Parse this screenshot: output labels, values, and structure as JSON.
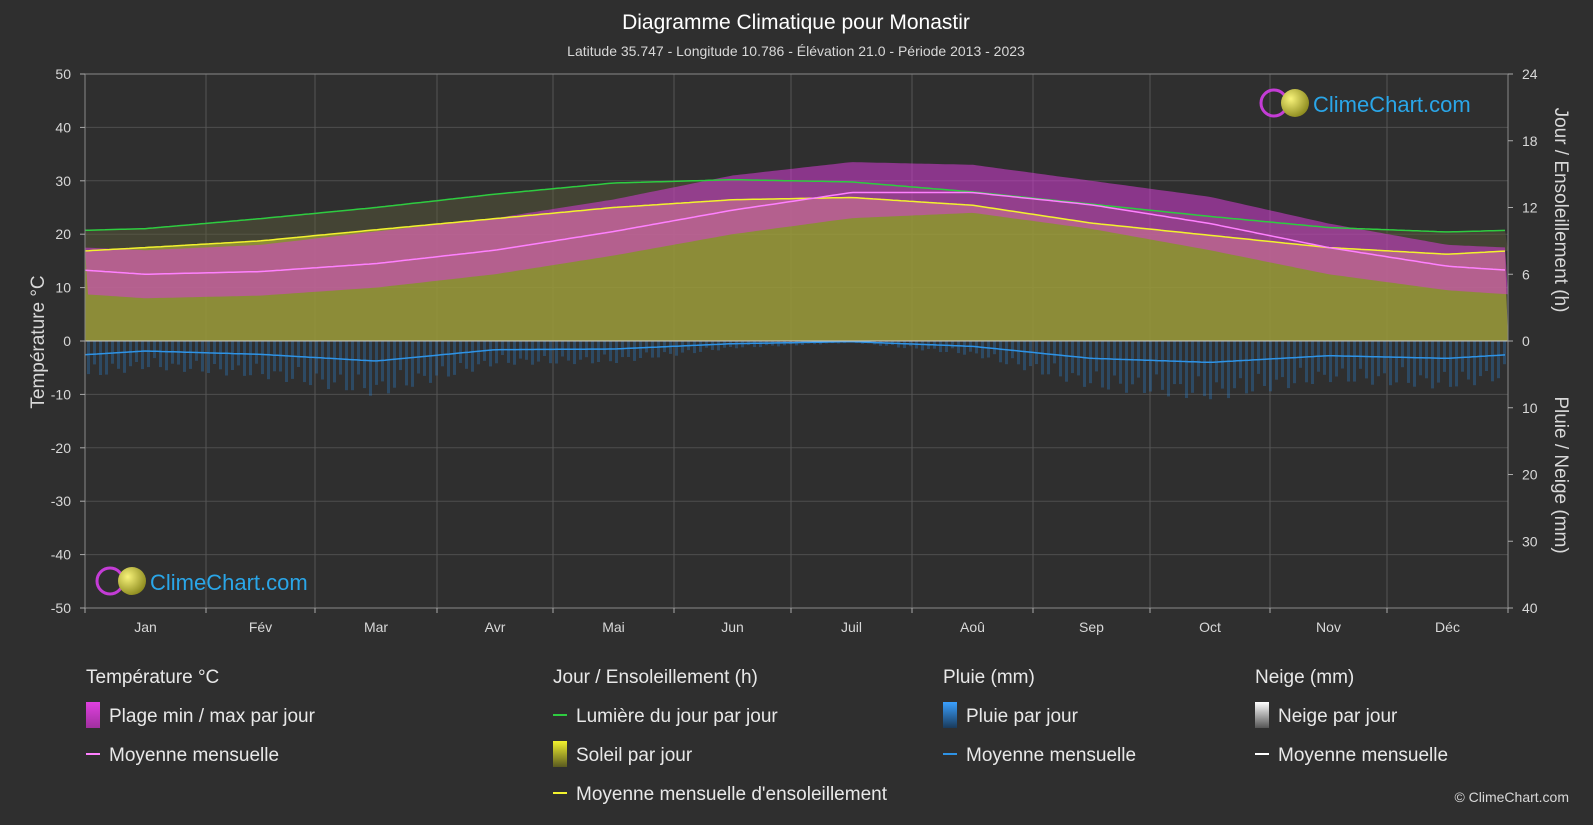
{
  "chart_data": {
    "type": "area",
    "title": "Diagramme Climatique pour Monastir",
    "subtitle": "Latitude 35.747 - Longitude 10.786 - Élévation 21.0 - Période 2013 - 2023",
    "categories": [
      "Jan",
      "Fév",
      "Mar",
      "Avr",
      "Mai",
      "Jun",
      "Juil",
      "Aoû",
      "Sep",
      "Oct",
      "Nov",
      "Déc"
    ],
    "left_axis": {
      "label": "Température °C",
      "range": [
        -50,
        50
      ],
      "ticks": [
        50,
        40,
        30,
        20,
        10,
        0,
        -10,
        -20,
        -30,
        -40,
        -50
      ]
    },
    "right_axis_top": {
      "label": "Jour / Ensoleillement (h)",
      "range": [
        0,
        24
      ],
      "ticks": [
        24,
        18,
        12,
        6,
        0
      ]
    },
    "right_axis_bottom": {
      "label": "Pluie / Neige (mm)",
      "range": [
        0,
        40
      ],
      "ticks": [
        0,
        10,
        20,
        30,
        40
      ]
    },
    "series": [
      {
        "name": "Plage min / max par jour",
        "unit": "°C",
        "min": [
          8,
          8.5,
          10,
          12.5,
          16,
          20,
          23,
          24,
          21,
          17,
          12.5,
          9.5
        ],
        "max": [
          17,
          18,
          20.5,
          23,
          26.5,
          31,
          33.5,
          33,
          30,
          27,
          22,
          18
        ]
      },
      {
        "name": "Moyenne mensuelle",
        "unit": "°C",
        "values": [
          12.5,
          13,
          14.5,
          17,
          20.5,
          24.5,
          27.8,
          27.8,
          25.5,
          22,
          17.5,
          14
        ]
      },
      {
        "name": "Lumière du jour par jour",
        "unit": "h",
        "values": [
          10.1,
          11,
          12,
          13.2,
          14.2,
          14.5,
          14.3,
          13.4,
          12.3,
          11.2,
          10.2,
          9.8
        ]
      },
      {
        "name": "Moyenne mensuelle d'ensoleillement",
        "unit": "h",
        "values": [
          8.4,
          9,
          10,
          11,
          12,
          12.7,
          12.9,
          12.2,
          10.6,
          9.5,
          8.4,
          7.8
        ]
      },
      {
        "name": "Pluie Moyenne mensuelle",
        "unit": "mm",
        "values": [
          1.5,
          2,
          3,
          1.3,
          1.2,
          0.4,
          0.1,
          0.8,
          2.6,
          3.2,
          2.2,
          2.6
        ]
      }
    ],
    "grid": true,
    "legend_position": "bottom"
  },
  "legend": {
    "temp": {
      "heading": "Température °C",
      "range": "Plage min / max par jour",
      "mean": "Moyenne mensuelle"
    },
    "sun": {
      "heading": "Jour / Ensoleillement (h)",
      "daylight": "Lumière du jour par jour",
      "sunshine": "Soleil par jour",
      "sun_mean": "Moyenne mensuelle d'ensoleillement"
    },
    "rain": {
      "heading": "Pluie (mm)",
      "daily": "Pluie par jour",
      "mean": "Moyenne mensuelle"
    },
    "snow": {
      "heading": "Neige (mm)",
      "daily": "Neige par jour",
      "mean": "Moyenne mensuelle"
    }
  },
  "logo_text": "ClimeChart.com",
  "copyright": "© ClimeChart.com",
  "colors": {
    "background": "#2f2f2f",
    "temp_range": "#d63cd6",
    "temp_mean": "#ff80ff",
    "daylight": "#2ecc40",
    "sunshine": "#9c9c3a",
    "sun_mean": "#f2f22e",
    "rain": "#2a7fc8",
    "rain_mean": "#2e93e6",
    "snow_mean": "#ffffff"
  }
}
